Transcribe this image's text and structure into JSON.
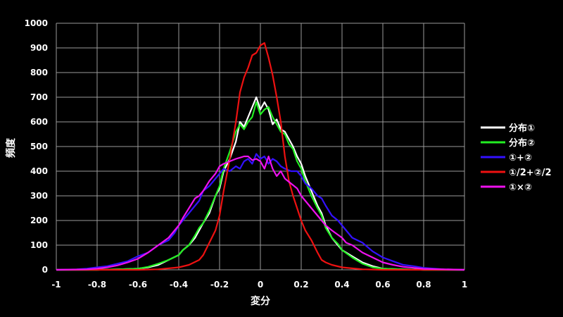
{
  "chart_data": {
    "type": "line",
    "xlabel": "変分",
    "ylabel": "頻度",
    "xlim": [
      -1,
      1
    ],
    "ylim": [
      0,
      1000
    ],
    "x_ticks": [
      "-1",
      "-0.8",
      "-0.6",
      "-0.4",
      "-0.2",
      "0",
      "0.2",
      "0.4",
      "0.6",
      "0.8",
      "1"
    ],
    "y_ticks": [
      "0",
      "100",
      "200",
      "300",
      "400",
      "500",
      "600",
      "700",
      "800",
      "900",
      "1000"
    ],
    "grid": true,
    "background": "#000000",
    "legend_position": "right",
    "series": [
      {
        "name": "分布①",
        "color": "#ffffff",
        "points": [
          [
            -1,
            0
          ],
          [
            -0.8,
            0
          ],
          [
            -0.7,
            2
          ],
          [
            -0.6,
            5
          ],
          [
            -0.55,
            10
          ],
          [
            -0.5,
            20
          ],
          [
            -0.45,
            40
          ],
          [
            -0.4,
            60
          ],
          [
            -0.38,
            80
          ],
          [
            -0.35,
            100
          ],
          [
            -0.32,
            130
          ],
          [
            -0.3,
            160
          ],
          [
            -0.28,
            190
          ],
          [
            -0.25,
            230
          ],
          [
            -0.22,
            300
          ],
          [
            -0.2,
            330
          ],
          [
            -0.18,
            400
          ],
          [
            -0.15,
            450
          ],
          [
            -0.12,
            520
          ],
          [
            -0.1,
            600
          ],
          [
            -0.08,
            580
          ],
          [
            -0.06,
            620
          ],
          [
            -0.04,
            660
          ],
          [
            -0.02,
            700
          ],
          [
            0,
            650
          ],
          [
            0.02,
            680
          ],
          [
            0.04,
            650
          ],
          [
            0.06,
            590
          ],
          [
            0.08,
            610
          ],
          [
            0.1,
            570
          ],
          [
            0.12,
            560
          ],
          [
            0.14,
            530
          ],
          [
            0.16,
            500
          ],
          [
            0.18,
            460
          ],
          [
            0.2,
            430
          ],
          [
            0.22,
            380
          ],
          [
            0.25,
            320
          ],
          [
            0.28,
            260
          ],
          [
            0.3,
            230
          ],
          [
            0.32,
            180
          ],
          [
            0.35,
            130
          ],
          [
            0.38,
            100
          ],
          [
            0.4,
            80
          ],
          [
            0.45,
            55
          ],
          [
            0.5,
            30
          ],
          [
            0.55,
            15
          ],
          [
            0.6,
            5
          ],
          [
            0.7,
            2
          ],
          [
            0.8,
            0
          ],
          [
            1,
            0
          ]
        ]
      },
      {
        "name": "分布②",
        "color": "#22ee22",
        "points": [
          [
            -1,
            0
          ],
          [
            -0.8,
            0
          ],
          [
            -0.7,
            2
          ],
          [
            -0.6,
            5
          ],
          [
            -0.55,
            12
          ],
          [
            -0.5,
            25
          ],
          [
            -0.45,
            40
          ],
          [
            -0.4,
            60
          ],
          [
            -0.38,
            80
          ],
          [
            -0.35,
            100
          ],
          [
            -0.32,
            140
          ],
          [
            -0.3,
            170
          ],
          [
            -0.28,
            190
          ],
          [
            -0.25,
            240
          ],
          [
            -0.22,
            300
          ],
          [
            -0.2,
            340
          ],
          [
            -0.18,
            410
          ],
          [
            -0.15,
            480
          ],
          [
            -0.12,
            560
          ],
          [
            -0.1,
            590
          ],
          [
            -0.08,
            570
          ],
          [
            -0.06,
            600
          ],
          [
            -0.04,
            620
          ],
          [
            -0.02,
            680
          ],
          [
            0,
            630
          ],
          [
            0.02,
            650
          ],
          [
            0.04,
            660
          ],
          [
            0.06,
            620
          ],
          [
            0.08,
            590
          ],
          [
            0.1,
            560
          ],
          [
            0.12,
            550
          ],
          [
            0.14,
            510
          ],
          [
            0.16,
            490
          ],
          [
            0.18,
            440
          ],
          [
            0.2,
            410
          ],
          [
            0.22,
            360
          ],
          [
            0.25,
            300
          ],
          [
            0.28,
            250
          ],
          [
            0.3,
            220
          ],
          [
            0.32,
            170
          ],
          [
            0.35,
            130
          ],
          [
            0.38,
            105
          ],
          [
            0.4,
            80
          ],
          [
            0.45,
            50
          ],
          [
            0.5,
            25
          ],
          [
            0.55,
            10
          ],
          [
            0.6,
            5
          ],
          [
            0.7,
            2
          ],
          [
            0.8,
            0
          ],
          [
            1,
            0
          ]
        ]
      },
      {
        "name": "①+②",
        "color": "#3311ff",
        "points": [
          [
            -1,
            0
          ],
          [
            -0.9,
            2
          ],
          [
            -0.85,
            5
          ],
          [
            -0.8,
            10
          ],
          [
            -0.75,
            15
          ],
          [
            -0.7,
            25
          ],
          [
            -0.65,
            35
          ],
          [
            -0.6,
            55
          ],
          [
            -0.55,
            70
          ],
          [
            -0.5,
            100
          ],
          [
            -0.45,
            120
          ],
          [
            -0.42,
            150
          ],
          [
            -0.4,
            180
          ],
          [
            -0.38,
            200
          ],
          [
            -0.35,
            230
          ],
          [
            -0.32,
            260
          ],
          [
            -0.3,
            280
          ],
          [
            -0.28,
            320
          ],
          [
            -0.25,
            340
          ],
          [
            -0.22,
            370
          ],
          [
            -0.2,
            390
          ],
          [
            -0.18,
            410
          ],
          [
            -0.15,
            400
          ],
          [
            -0.12,
            420
          ],
          [
            -0.1,
            410
          ],
          [
            -0.08,
            440
          ],
          [
            -0.06,
            450
          ],
          [
            -0.04,
            430
          ],
          [
            -0.02,
            470
          ],
          [
            0,
            450
          ],
          [
            0.02,
            460
          ],
          [
            0.04,
            430
          ],
          [
            0.06,
            450
          ],
          [
            0.08,
            440
          ],
          [
            0.1,
            420
          ],
          [
            0.12,
            410
          ],
          [
            0.15,
            400
          ],
          [
            0.18,
            400
          ],
          [
            0.2,
            380
          ],
          [
            0.22,
            350
          ],
          [
            0.25,
            330
          ],
          [
            0.28,
            300
          ],
          [
            0.3,
            290
          ],
          [
            0.32,
            260
          ],
          [
            0.35,
            220
          ],
          [
            0.38,
            200
          ],
          [
            0.4,
            180
          ],
          [
            0.42,
            160
          ],
          [
            0.45,
            130
          ],
          [
            0.5,
            110
          ],
          [
            0.55,
            75
          ],
          [
            0.6,
            50
          ],
          [
            0.65,
            35
          ],
          [
            0.7,
            20
          ],
          [
            0.75,
            15
          ],
          [
            0.8,
            8
          ],
          [
            0.85,
            5
          ],
          [
            0.9,
            2
          ],
          [
            1,
            0
          ]
        ]
      },
      {
        "name": "①/2+②/2",
        "color": "#ee1111",
        "points": [
          [
            -1,
            0
          ],
          [
            -0.6,
            0
          ],
          [
            -0.5,
            2
          ],
          [
            -0.4,
            10
          ],
          [
            -0.35,
            20
          ],
          [
            -0.3,
            40
          ],
          [
            -0.28,
            60
          ],
          [
            -0.25,
            110
          ],
          [
            -0.22,
            160
          ],
          [
            -0.2,
            220
          ],
          [
            -0.18,
            320
          ],
          [
            -0.15,
            450
          ],
          [
            -0.12,
            600
          ],
          [
            -0.1,
            720
          ],
          [
            -0.08,
            780
          ],
          [
            -0.06,
            820
          ],
          [
            -0.04,
            870
          ],
          [
            -0.02,
            880
          ],
          [
            0,
            910
          ],
          [
            0.02,
            920
          ],
          [
            0.04,
            860
          ],
          [
            0.06,
            790
          ],
          [
            0.08,
            700
          ],
          [
            0.1,
            600
          ],
          [
            0.12,
            460
          ],
          [
            0.14,
            360
          ],
          [
            0.16,
            300
          ],
          [
            0.18,
            250
          ],
          [
            0.2,
            200
          ],
          [
            0.22,
            160
          ],
          [
            0.25,
            120
          ],
          [
            0.28,
            70
          ],
          [
            0.3,
            40
          ],
          [
            0.32,
            30
          ],
          [
            0.35,
            20
          ],
          [
            0.4,
            10
          ],
          [
            0.5,
            2
          ],
          [
            0.6,
            0
          ],
          [
            1,
            0
          ]
        ]
      },
      {
        "name": "①×②",
        "color": "#ee11ee",
        "points": [
          [
            -1,
            0
          ],
          [
            -0.85,
            2
          ],
          [
            -0.8,
            5
          ],
          [
            -0.75,
            10
          ],
          [
            -0.7,
            18
          ],
          [
            -0.65,
            30
          ],
          [
            -0.6,
            45
          ],
          [
            -0.55,
            70
          ],
          [
            -0.5,
            100
          ],
          [
            -0.45,
            130
          ],
          [
            -0.42,
            160
          ],
          [
            -0.4,
            180
          ],
          [
            -0.38,
            210
          ],
          [
            -0.35,
            250
          ],
          [
            -0.32,
            290
          ],
          [
            -0.3,
            300
          ],
          [
            -0.28,
            320
          ],
          [
            -0.25,
            360
          ],
          [
            -0.22,
            390
          ],
          [
            -0.2,
            420
          ],
          [
            -0.18,
            430
          ],
          [
            -0.15,
            440
          ],
          [
            -0.12,
            450
          ],
          [
            -0.1,
            455
          ],
          [
            -0.08,
            460
          ],
          [
            -0.06,
            460
          ],
          [
            -0.04,
            445
          ],
          [
            -0.02,
            450
          ],
          [
            0,
            440
          ],
          [
            0.02,
            410
          ],
          [
            0.04,
            460
          ],
          [
            0.06,
            410
          ],
          [
            0.08,
            380
          ],
          [
            0.1,
            400
          ],
          [
            0.12,
            370
          ],
          [
            0.15,
            350
          ],
          [
            0.18,
            330
          ],
          [
            0.2,
            300
          ],
          [
            0.22,
            280
          ],
          [
            0.25,
            250
          ],
          [
            0.28,
            220
          ],
          [
            0.3,
            200
          ],
          [
            0.32,
            180
          ],
          [
            0.35,
            160
          ],
          [
            0.4,
            130
          ],
          [
            0.42,
            110
          ],
          [
            0.45,
            100
          ],
          [
            0.5,
            70
          ],
          [
            0.55,
            50
          ],
          [
            0.6,
            30
          ],
          [
            0.65,
            20
          ],
          [
            0.7,
            12
          ],
          [
            0.75,
            8
          ],
          [
            0.8,
            4
          ],
          [
            0.9,
            2
          ],
          [
            1,
            0
          ]
        ]
      }
    ]
  }
}
